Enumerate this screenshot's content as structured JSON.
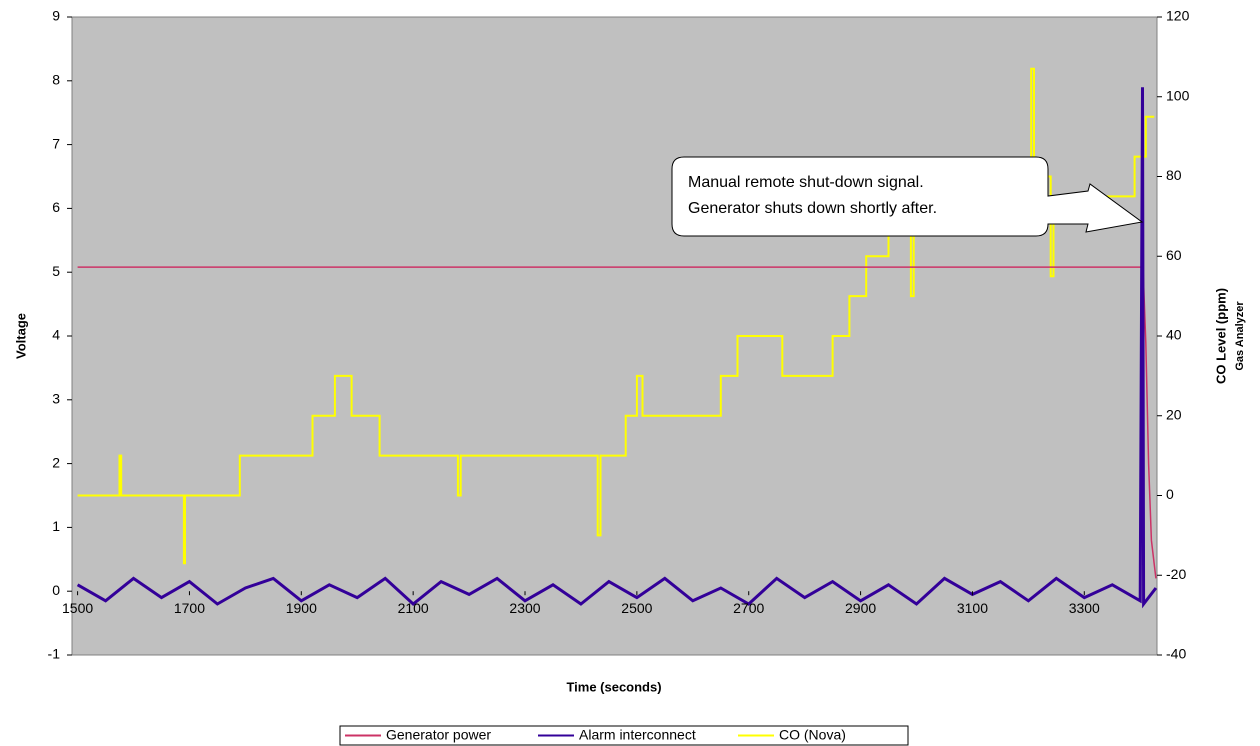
{
  "chart_data": {
    "type": "line",
    "xlabel": "Time (seconds)",
    "ylabel": "Voltage",
    "y2label": "CO Level (ppm)",
    "y2sublabel": "Gas Analyzer",
    "annotation": [
      "Manual remote shut-down signal.",
      "Generator shuts down shortly after."
    ],
    "xlim": [
      1490,
      3430
    ],
    "ylim": [
      -1,
      9
    ],
    "y2lim": [
      -40,
      120
    ],
    "xticks": [
      1500,
      1700,
      1900,
      2100,
      2300,
      2500,
      2700,
      2900,
      3100,
      3300
    ],
    "yticks": [
      -1,
      0,
      1,
      2,
      3,
      4,
      5,
      6,
      7,
      8,
      9
    ],
    "y2ticks": [
      -40,
      -20,
      0,
      20,
      40,
      60,
      80,
      100,
      120
    ],
    "grid": false,
    "legend": "bottom",
    "series": [
      {
        "name": "Generator power",
        "color": "#cc3366",
        "axis": "y",
        "x": [
          1500,
          3405,
          3410,
          3415,
          3420,
          3428
        ],
        "values": [
          5.08,
          5.08,
          3.9,
          2.0,
          0.8,
          0.2
        ]
      },
      {
        "name": "Alarm interconnect",
        "color": "#330099",
        "axis": "y",
        "x": [
          1500,
          1550,
          1600,
          1650,
          1700,
          1750,
          1800,
          1850,
          1900,
          1950,
          2000,
          2050,
          2100,
          2150,
          2200,
          2250,
          2300,
          2350,
          2400,
          2450,
          2500,
          2550,
          2600,
          2650,
          2700,
          2750,
          2800,
          2850,
          2900,
          2950,
          3000,
          3050,
          3100,
          3150,
          3200,
          3250,
          3300,
          3350,
          3400,
          3404,
          3406,
          3428
        ],
        "values": [
          0.1,
          -0.15,
          0.2,
          -0.1,
          0.15,
          -0.2,
          0.05,
          0.2,
          -0.15,
          0.1,
          -0.1,
          0.2,
          -0.2,
          0.15,
          -0.05,
          0.2,
          -0.15,
          0.1,
          -0.2,
          0.15,
          -0.1,
          0.2,
          -0.15,
          0.05,
          -0.2,
          0.2,
          -0.1,
          0.15,
          -0.15,
          0.1,
          -0.2,
          0.2,
          -0.05,
          0.15,
          -0.15,
          0.2,
          -0.1,
          0.1,
          -0.15,
          7.9,
          -0.2,
          0.05
        ]
      },
      {
        "name": "CO (Nova)",
        "color": "#ffff00",
        "axis": "y2",
        "x": [
          1500,
          1575,
          1575,
          1578,
          1578,
          1690,
          1690,
          1692,
          1692,
          1790,
          1790,
          1920,
          1920,
          1960,
          1960,
          1990,
          1990,
          2040,
          2040,
          2180,
          2180,
          2185,
          2185,
          2430,
          2430,
          2435,
          2435,
          2480,
          2480,
          2500,
          2500,
          2510,
          2510,
          2650,
          2650,
          2680,
          2680,
          2760,
          2760,
          2850,
          2850,
          2880,
          2880,
          2910,
          2910,
          2950,
          2950,
          2990,
          2990,
          2995,
          2995,
          3020,
          3020,
          3090,
          3090,
          3140,
          3140,
          3160,
          3160,
          3205,
          3205,
          3210,
          3210,
          3240,
          3240,
          3245,
          3245,
          3290,
          3290,
          3340,
          3340,
          3390,
          3390,
          3410,
          3410,
          3425
        ],
        "values": [
          0,
          0,
          10,
          10,
          0,
          0,
          -17,
          -17,
          0,
          0,
          10,
          10,
          20,
          20,
          30,
          30,
          20,
          20,
          10,
          10,
          0,
          0,
          10,
          10,
          -10,
          -10,
          10,
          10,
          20,
          20,
          30,
          30,
          20,
          20,
          30,
          30,
          40,
          40,
          30,
          30,
          40,
          40,
          50,
          50,
          60,
          60,
          70,
          70,
          50,
          50,
          80,
          80,
          70,
          70,
          80,
          80,
          70,
          70,
          80,
          80,
          107,
          107,
          80,
          80,
          55,
          55,
          75,
          75,
          70,
          70,
          75,
          75,
          85,
          85,
          95,
          95
        ]
      }
    ]
  }
}
